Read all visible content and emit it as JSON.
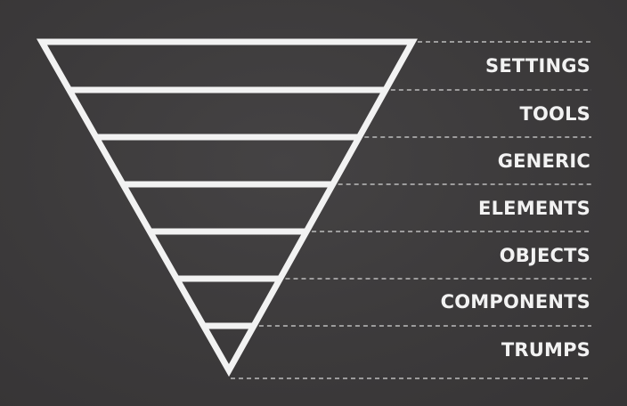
{
  "colors": {
    "background": "#3d3b3c",
    "foreground": "#f2f2f2"
  },
  "layers": [
    {
      "label": "SETTINGS"
    },
    {
      "label": "TOOLS"
    },
    {
      "label": "GENERIC"
    },
    {
      "label": "ELEMENTS"
    },
    {
      "label": "OBJECTS"
    },
    {
      "label": "COMPONENTS"
    },
    {
      "label": "TRUMPS"
    }
  ]
}
